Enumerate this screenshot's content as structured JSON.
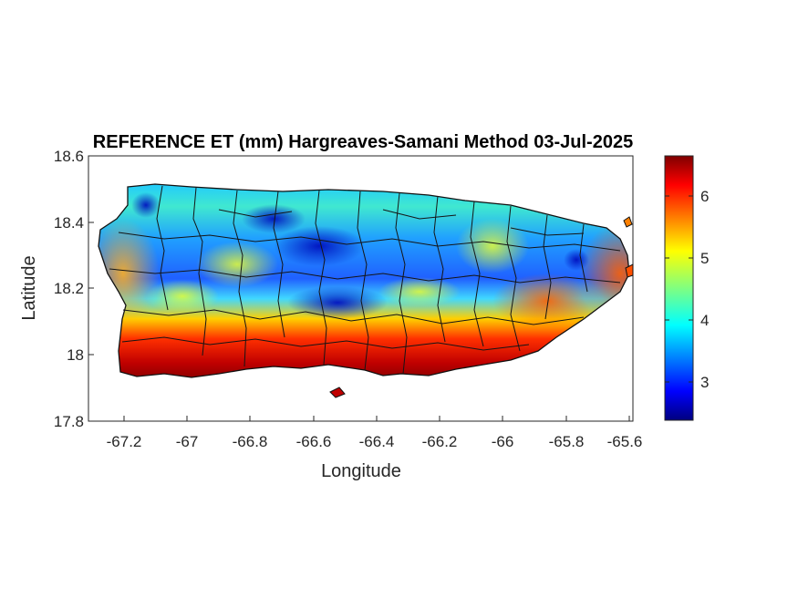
{
  "title": "REFERENCE ET (mm) Hargreaves-Samani Method  03-Jul-2025",
  "xlabel": "Longitude",
  "ylabel": "Latitude",
  "x_ticks": [
    "-67.2",
    "-67",
    "-66.8",
    "-66.6",
    "-66.4",
    "-66.2",
    "-66",
    "-65.8",
    "-65.6"
  ],
  "y_ticks": [
    "18.6",
    "18.4",
    "18.2",
    "18",
    "17.8"
  ],
  "colorbar_ticks": [
    "6",
    "5",
    "4",
    "3"
  ],
  "chart_data": {
    "type": "heatmap",
    "title": "REFERENCE ET (mm) Hargreaves-Samani Method  03-Jul-2025",
    "xlabel": "Longitude",
    "ylabel": "Latitude",
    "xlim": [
      -67.3,
      -65.58
    ],
    "ylim": [
      17.8,
      18.6
    ],
    "x_tick_values": [
      -67.2,
      -67,
      -66.8,
      -66.6,
      -66.4,
      -66.2,
      -66,
      -65.8,
      -65.6
    ],
    "y_tick_values": [
      18.6,
      18.4,
      18.2,
      18.0,
      17.8
    ],
    "colorbar": {
      "colormap": "jet",
      "range": [
        2.4,
        6.65
      ],
      "tick_values": [
        3,
        4,
        5,
        6
      ]
    },
    "grid": false,
    "region": "Puerto Rico with municipal boundaries",
    "field_description": {
      "south_coast": 6.5,
      "central_mountains": 2.8,
      "north_coast": 4.0,
      "west_coast": 5.5,
      "east_coast": 5.2
    }
  }
}
